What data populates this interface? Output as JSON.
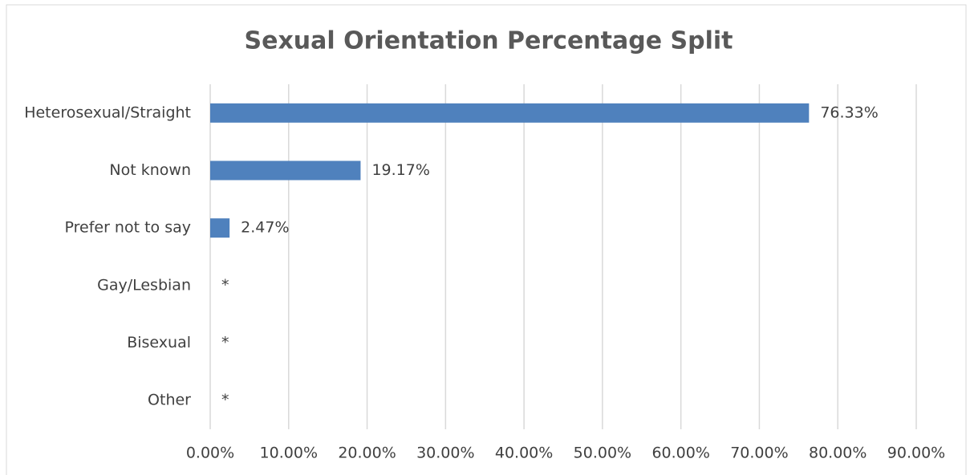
{
  "chart_data": {
    "type": "bar",
    "orientation": "horizontal",
    "title": "Sexual Orientation Percentage Split",
    "categories": [
      "Heterosexual/Straight",
      "Not known",
      "Prefer not to say",
      "Gay/Lesbian",
      "Bisexual",
      "Other"
    ],
    "values": [
      76.33,
      19.17,
      2.47,
      null,
      null,
      null
    ],
    "value_labels": [
      "76.33%",
      "19.17%",
      "2.47%",
      "*",
      "*",
      "*"
    ],
    "color": "#4f81bd",
    "xlim": [
      0,
      90
    ],
    "xticks": [
      {
        "value": 0,
        "label": "0.00%"
      },
      {
        "value": 10,
        "label": "10.00%"
      },
      {
        "value": 20,
        "label": "20.00%"
      },
      {
        "value": 30,
        "label": "30.00%"
      },
      {
        "value": 40,
        "label": "40.00%"
      },
      {
        "value": 50,
        "label": "50.00%"
      },
      {
        "value": 60,
        "label": "60.00%"
      },
      {
        "value": 70,
        "label": "70.00%"
      },
      {
        "value": 80,
        "label": "80.00%"
      },
      {
        "value": 90,
        "label": "90.00%"
      }
    ],
    "grid": true
  }
}
